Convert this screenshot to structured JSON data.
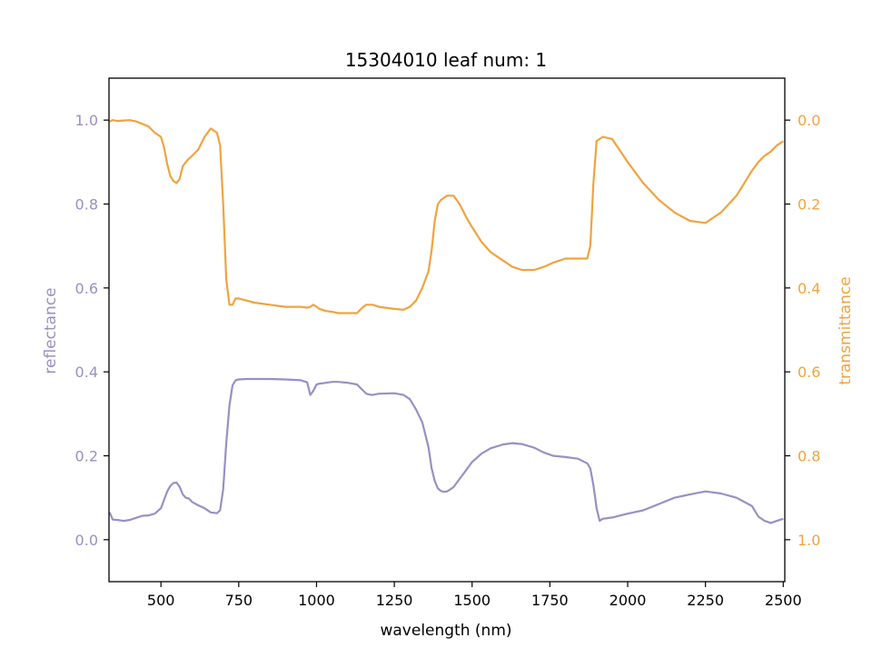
{
  "chart_data": {
    "type": "line",
    "title": "15304010 leaf num: 1",
    "xlabel": "wavelength (nm)",
    "ylabel_left": "reflectance",
    "ylabel_right": "transmittance",
    "xlim": [
      333,
      2505
    ],
    "ylim_left": [
      -0.1,
      1.1
    ],
    "ylim_right_inverted": [
      1.1,
      -0.1
    ],
    "x_ticks": [
      500,
      750,
      1000,
      1250,
      1500,
      1750,
      2000,
      2250,
      2500
    ],
    "y_ticks_left": [
      0.0,
      0.2,
      0.4,
      0.6,
      0.8,
      1.0
    ],
    "y_ticks_right": [
      0.0,
      0.2,
      0.4,
      0.6,
      0.8,
      1.0
    ],
    "grid": false,
    "colors": {
      "reflectance": "#9890c3",
      "transmittance": "#f0a340",
      "axes": "#000000"
    },
    "series": [
      {
        "axis": "left",
        "x": [
          335,
          345,
          360,
          380,
          400,
          420,
          440,
          460,
          480,
          500,
          510,
          520,
          530,
          540,
          550,
          560,
          570,
          580,
          590,
          600,
          620,
          640,
          660,
          680,
          690,
          700,
          710,
          720,
          730,
          740,
          750,
          775,
          800,
          850,
          900,
          950,
          970,
          980,
          990,
          1000,
          1010,
          1030,
          1050,
          1070,
          1100,
          1130,
          1150,
          1160,
          1170,
          1180,
          1200,
          1250,
          1280,
          1300,
          1320,
          1340,
          1360,
          1370,
          1380,
          1390,
          1400,
          1410,
          1420,
          1440,
          1460,
          1480,
          1500,
          1530,
          1560,
          1600,
          1630,
          1660,
          1700,
          1730,
          1760,
          1800,
          1840,
          1870,
          1880,
          1890,
          1900,
          1910,
          1920,
          1950,
          2000,
          2050,
          2100,
          2150,
          2200,
          2250,
          2300,
          2350,
          2400,
          2420,
          2440,
          2460,
          2480,
          2500
        ],
        "y": [
          0.065,
          0.048,
          0.047,
          0.045,
          0.047,
          0.052,
          0.057,
          0.058,
          0.062,
          0.075,
          0.095,
          0.115,
          0.128,
          0.135,
          0.136,
          0.126,
          0.108,
          0.1,
          0.098,
          0.09,
          0.082,
          0.075,
          0.065,
          0.063,
          0.07,
          0.12,
          0.23,
          0.32,
          0.368,
          0.38,
          0.382,
          0.383,
          0.383,
          0.383,
          0.382,
          0.38,
          0.375,
          0.345,
          0.355,
          0.37,
          0.372,
          0.374,
          0.376,
          0.376,
          0.374,
          0.37,
          0.355,
          0.348,
          0.346,
          0.345,
          0.348,
          0.349,
          0.345,
          0.335,
          0.31,
          0.28,
          0.22,
          0.17,
          0.14,
          0.122,
          0.116,
          0.114,
          0.115,
          0.125,
          0.145,
          0.165,
          0.185,
          0.205,
          0.218,
          0.227,
          0.23,
          0.228,
          0.219,
          0.208,
          0.2,
          0.197,
          0.193,
          0.182,
          0.17,
          0.13,
          0.075,
          0.045,
          0.05,
          0.053,
          0.062,
          0.07,
          0.085,
          0.1,
          0.108,
          0.115,
          0.11,
          0.1,
          0.08,
          0.055,
          0.045,
          0.04,
          0.045,
          0.05
        ]
      },
      {
        "axis": "right",
        "x": [
          335,
          345,
          360,
          380,
          400,
          420,
          440,
          460,
          480,
          500,
          510,
          520,
          530,
          540,
          550,
          560,
          570,
          580,
          590,
          600,
          620,
          640,
          660,
          680,
          690,
          700,
          710,
          720,
          730,
          740,
          750,
          775,
          800,
          850,
          900,
          950,
          970,
          980,
          990,
          1000,
          1010,
          1030,
          1050,
          1070,
          1100,
          1130,
          1150,
          1160,
          1170,
          1180,
          1200,
          1250,
          1280,
          1300,
          1320,
          1340,
          1360,
          1370,
          1380,
          1390,
          1400,
          1410,
          1420,
          1440,
          1460,
          1480,
          1500,
          1530,
          1560,
          1600,
          1630,
          1660,
          1700,
          1730,
          1760,
          1800,
          1840,
          1870,
          1880,
          1890,
          1900,
          1910,
          1920,
          1950,
          2000,
          2050,
          2100,
          2150,
          2200,
          2250,
          2300,
          2350,
          2400,
          2420,
          2440,
          2460,
          2480,
          2500
        ],
        "y": [
          0.003,
          0.0,
          0.002,
          0.001,
          0.0,
          0.003,
          0.009,
          0.015,
          0.03,
          0.04,
          0.065,
          0.105,
          0.133,
          0.145,
          0.15,
          0.14,
          0.11,
          0.1,
          0.092,
          0.085,
          0.07,
          0.04,
          0.02,
          0.03,
          0.06,
          0.2,
          0.38,
          0.44,
          0.44,
          0.425,
          0.425,
          0.43,
          0.435,
          0.44,
          0.445,
          0.445,
          0.447,
          0.445,
          0.44,
          0.445,
          0.45,
          0.455,
          0.457,
          0.46,
          0.46,
          0.46,
          0.445,
          0.44,
          0.44,
          0.44,
          0.445,
          0.45,
          0.452,
          0.445,
          0.43,
          0.4,
          0.36,
          0.31,
          0.24,
          0.2,
          0.19,
          0.185,
          0.18,
          0.18,
          0.2,
          0.23,
          0.255,
          0.29,
          0.315,
          0.335,
          0.35,
          0.357,
          0.357,
          0.35,
          0.34,
          0.33,
          0.33,
          0.33,
          0.3,
          0.15,
          0.05,
          0.045,
          0.04,
          0.045,
          0.1,
          0.15,
          0.19,
          0.22,
          0.24,
          0.245,
          0.22,
          0.18,
          0.12,
          0.1,
          0.085,
          0.075,
          0.06,
          0.05
        ]
      }
    ]
  }
}
